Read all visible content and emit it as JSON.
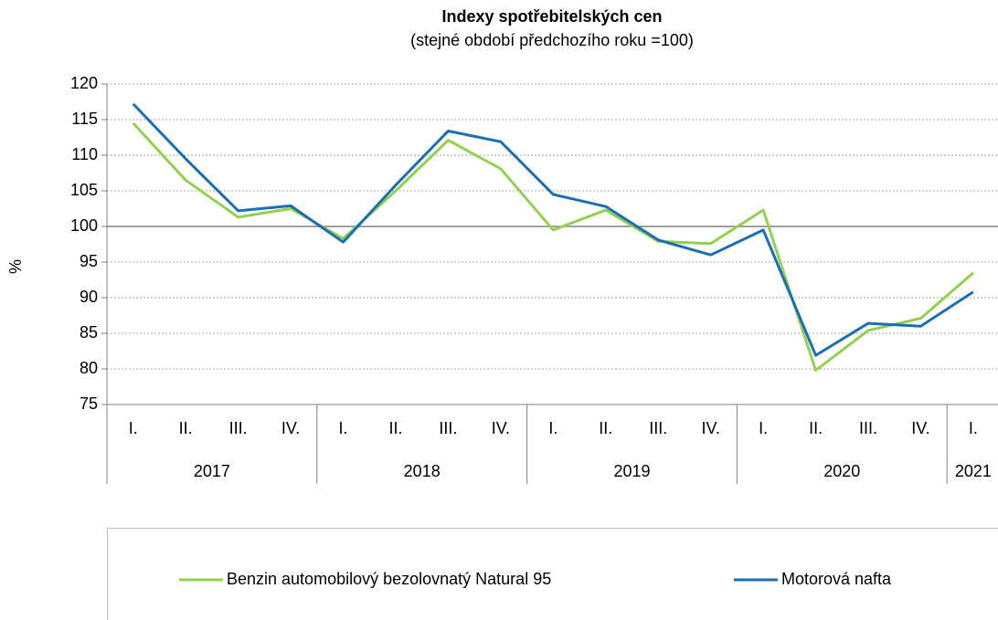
{
  "chart_data": {
    "type": "line",
    "title": "Indexy spotřebitelských cen",
    "subtitle": "(stejné období předchozího roku =100)",
    "y_label": "%",
    "categories": [
      "I.",
      "II.",
      "III.",
      "IV.",
      "I.",
      "II.",
      "III.",
      "IV.",
      "I.",
      "II.",
      "III.",
      "IV.",
      "I.",
      "II.",
      "III.",
      "IV.",
      "I."
    ],
    "category_groups": [
      {
        "label": "2017",
        "span": 4
      },
      {
        "label": "2018",
        "span": 4
      },
      {
        "label": "2019",
        "span": 4
      },
      {
        "label": "2020",
        "span": 4
      },
      {
        "label": "2021",
        "span": 1
      }
    ],
    "series": [
      {
        "name": "Benzin automobilový bezolovnatý Natural 95",
        "color": "#92d050",
        "values": [
          114.5,
          106.5,
          101.3,
          102.5,
          98.3,
          105.0,
          112.1,
          108.1,
          99.5,
          102.3,
          97.9,
          97.6,
          102.3,
          79.8,
          85.4,
          87.1,
          93.5
        ]
      },
      {
        "name": "Motorová nafta",
        "color": "#1a6fb4",
        "values": [
          117.2,
          109.5,
          102.2,
          102.9,
          97.8,
          105.8,
          113.4,
          111.9,
          104.5,
          102.8,
          98.1,
          96.0,
          99.5,
          81.9,
          86.4,
          86.0,
          90.8
        ]
      }
    ],
    "ylim": [
      75,
      120
    ],
    "yticks": [
      75,
      80,
      85,
      90,
      95,
      100,
      105,
      110,
      115,
      120
    ],
    "reference_line": 100,
    "grid": true,
    "legend": "bottom"
  }
}
